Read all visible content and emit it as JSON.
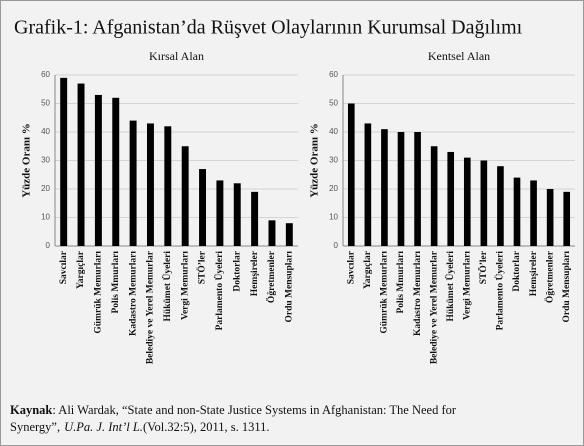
{
  "title": "Grafik-1: Afganistan’da Rüşvet Olaylarının Kurumsal Dağılımı",
  "chart_data": [
    {
      "type": "bar",
      "title": "Kırsal Alan",
      "ylabel": "Yüzde Oranı %",
      "categories": [
        "Savcılar",
        "Yargıçlar",
        "Gümrük Memurları",
        "Polis Mmurları",
        "Kadastro Memurları",
        "Belediye ve Yerel Memurlar",
        "Hükümet Üyeleri",
        "Vergi Memurları",
        "STÖ’ler",
        "Parlamento Üyeleri",
        "Doktorlar",
        "Hemşireler",
        "Öğretmenler",
        "Ordu Mensupları"
      ],
      "values": [
        59,
        57,
        53,
        52,
        44,
        43,
        42,
        35,
        27,
        23,
        22,
        19,
        9,
        8
      ],
      "color": "#000000",
      "ylim": [
        0,
        60
      ],
      "yticks": [
        0,
        10,
        20,
        30,
        40,
        50,
        60
      ],
      "grid": true
    },
    {
      "type": "bar",
      "title": "Kentsel Alan",
      "ylabel": "Yüzde Oranı %",
      "categories": [
        "Savcılar",
        "Yargıçlar",
        "Gümrük Memurları",
        "Polis Mmurları",
        "Kadastro Memurları",
        "Belediye ve Yerel Memurlar",
        "Hükümet Üyeleri",
        "Vergi Memurları",
        "STÖ’ler",
        "Parlamento Üyeleri",
        "Doktorlar",
        "Hemşireler",
        "Öğretmenler",
        "Ordu Mensupları"
      ],
      "values": [
        50,
        43,
        41,
        40,
        40,
        35,
        33,
        31,
        30,
        28,
        24,
        23,
        20,
        19
      ],
      "color": "#000000",
      "ylim": [
        0,
        60
      ],
      "yticks": [
        0,
        10,
        20,
        30,
        40,
        50,
        60
      ],
      "grid": true
    }
  ],
  "source": {
    "line1": {
      "label": "Kaynak",
      "text": ": Ali Wardak, “State and non-State Justice Systems in Afghanistan: The Need for"
    },
    "line2": {
      "text": "Synergy”,",
      "journal": "U.Pa. J. Int’l L.",
      "rest": "(Vol.32:5), 2011, s. 1311."
    }
  }
}
